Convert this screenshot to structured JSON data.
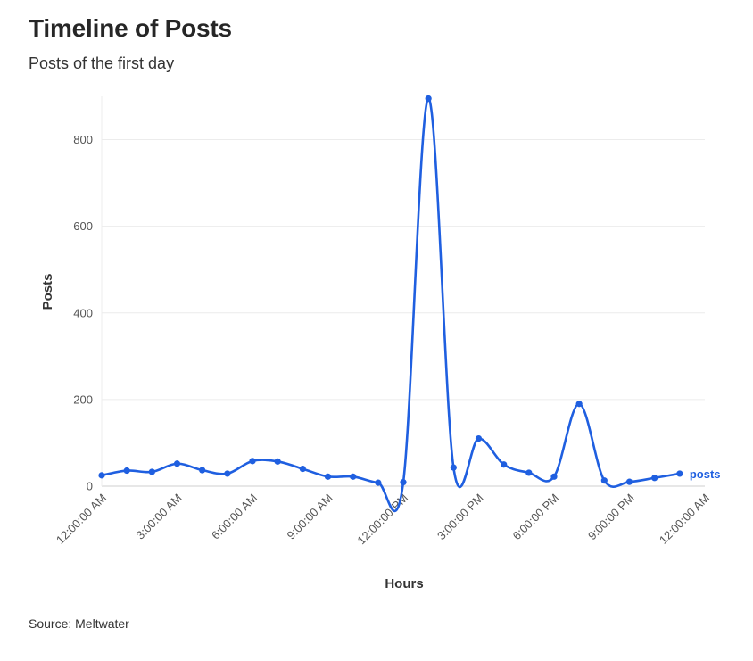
{
  "chart_data": {
    "type": "line",
    "title": "Timeline of Posts",
    "subtitle": "Posts of the first day",
    "xlabel": "Hours",
    "ylabel": "Posts",
    "source": "Source: Meltwater",
    "ylim": [
      0,
      900
    ],
    "yticks": [
      0,
      200,
      400,
      600,
      800
    ],
    "x_range_hours": [
      0,
      24
    ],
    "xticks": [
      {
        "hour": 0,
        "label": "12:00:00 AM"
      },
      {
        "hour": 3,
        "label": "3:00:00 AM"
      },
      {
        "hour": 6,
        "label": "6:00:00 AM"
      },
      {
        "hour": 9,
        "label": "9:00:00 AM"
      },
      {
        "hour": 12,
        "label": "12:00:00 PM"
      },
      {
        "hour": 15,
        "label": "3:00:00 PM"
      },
      {
        "hour": 18,
        "label": "6:00:00 PM"
      },
      {
        "hour": 21,
        "label": "9:00:00 PM"
      },
      {
        "hour": 24,
        "label": "12:00:00 AM"
      }
    ],
    "grid": true,
    "series": [
      {
        "name": "posts",
        "color": "#1f5fe0",
        "x": [
          0,
          1,
          2,
          3,
          4,
          5,
          6,
          7,
          8,
          9,
          10,
          11,
          12,
          13,
          14,
          15,
          16,
          17,
          18,
          19,
          20,
          21,
          22,
          23
        ],
        "values": [
          25,
          36,
          33,
          52,
          37,
          29,
          58,
          57,
          40,
          22,
          22,
          8,
          9,
          895,
          43,
          110,
          50,
          31,
          22,
          190,
          13,
          10,
          19,
          29
        ]
      }
    ]
  }
}
